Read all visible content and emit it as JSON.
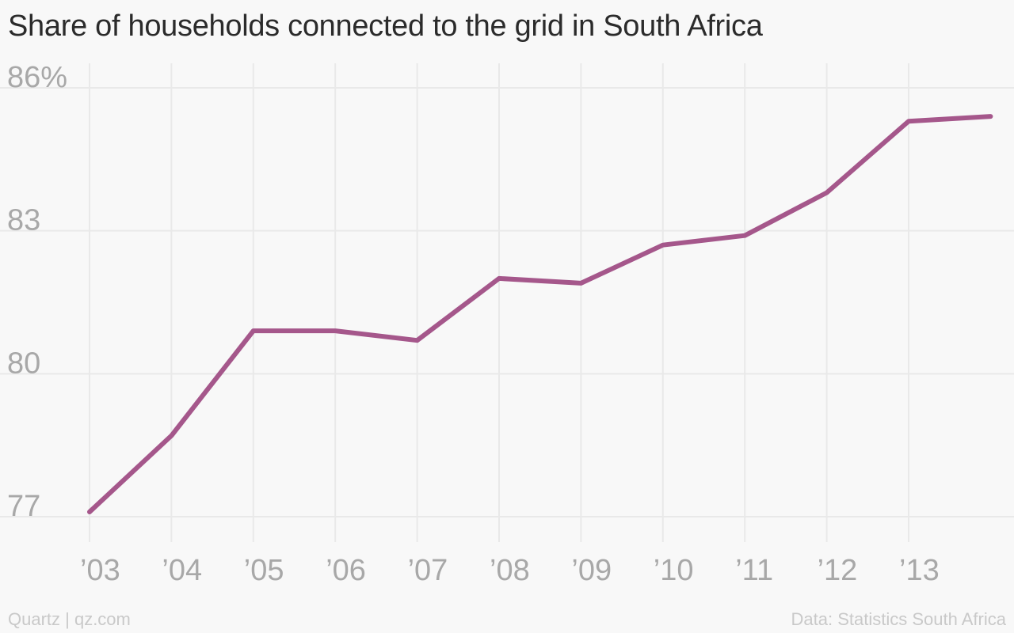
{
  "chart_data": {
    "type": "line",
    "title": "Share of households connected to the grid in South Africa",
    "xlabel": "",
    "ylabel": "",
    "x": [
      2003,
      2004,
      2005,
      2006,
      2007,
      2008,
      2009,
      2010,
      2011,
      2012,
      2013,
      2014
    ],
    "tick_labels": [
      "’03",
      "’04",
      "’05",
      "’06",
      "’07",
      "’08",
      "’09",
      "’10",
      "’11",
      "’12",
      "’13"
    ],
    "y_ticks": [
      {
        "value": 86,
        "label": "86%"
      },
      {
        "value": 83,
        "label": "83"
      },
      {
        "value": 80,
        "label": "80"
      },
      {
        "value": 77,
        "label": "77"
      }
    ],
    "ylim": [
      77,
      86
    ],
    "grid": true,
    "series": [
      {
        "values": [
          77.1,
          78.7,
          80.9,
          80.9,
          80.7,
          82.0,
          81.9,
          82.7,
          82.9,
          83.8,
          85.3,
          85.4
        ],
        "color": "#a5578b"
      }
    ]
  },
  "footer": {
    "source_left": "Quartz | qz.com",
    "source_right": "Data: Statistics South Africa"
  }
}
